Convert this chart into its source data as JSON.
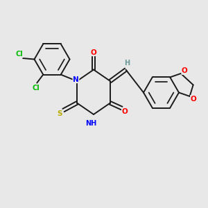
{
  "background_color": "#e8e8e8",
  "bond_color": "#1a1a1a",
  "atom_colors": {
    "N": "#0000ff",
    "O": "#ff0000",
    "S": "#bbaa00",
    "Cl": "#00bb00",
    "H_label": "#6a9898",
    "C": "#1a1a1a"
  },
  "font_size_atom": 7.5,
  "font_size_nh": 7.0,
  "line_width": 1.4,
  "figsize": [
    3.0,
    3.0
  ],
  "dpi": 100,
  "xlim": [
    0,
    10
  ],
  "ylim": [
    0,
    10
  ]
}
